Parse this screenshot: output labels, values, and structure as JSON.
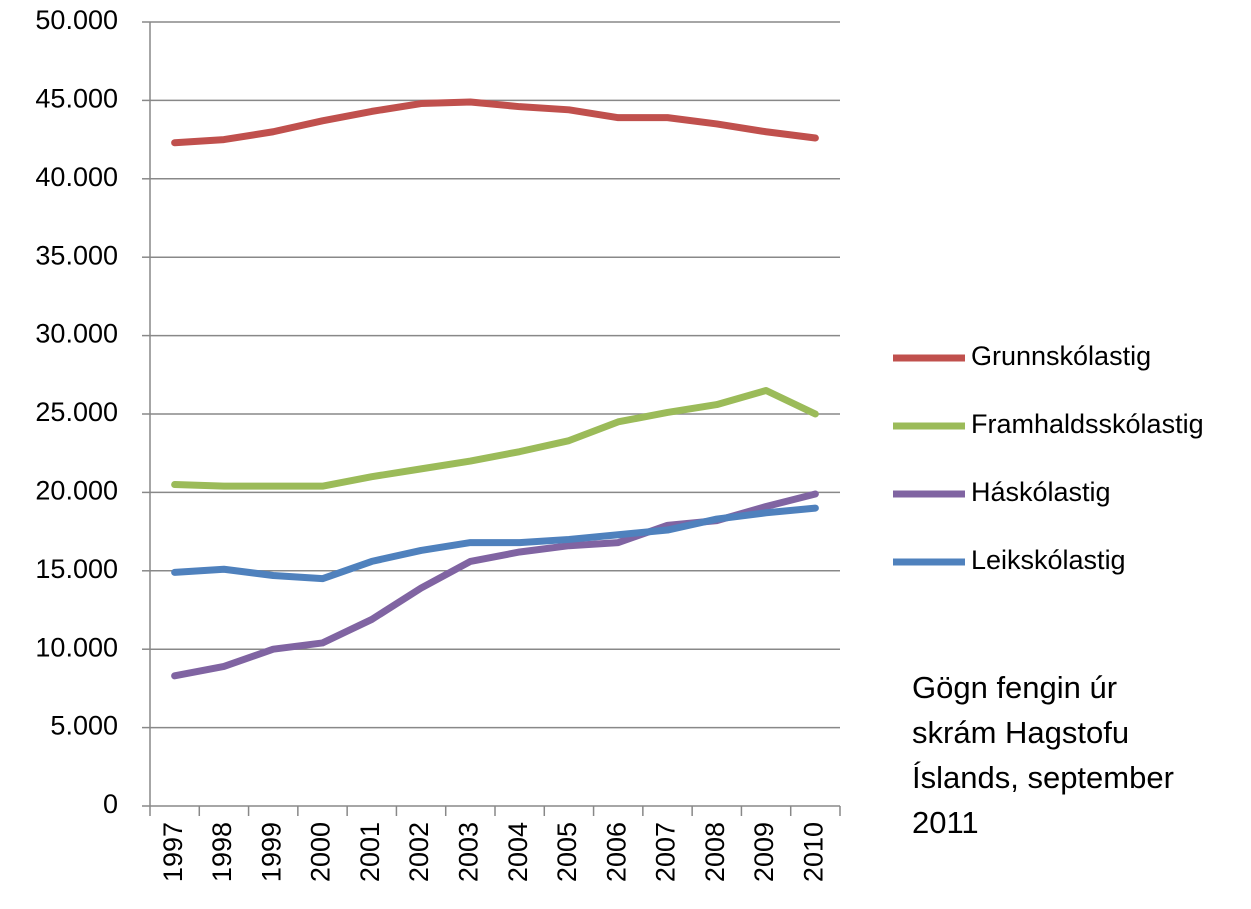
{
  "chart_data": {
    "type": "line",
    "categories": [
      "1997",
      "1998",
      "1999",
      "2000",
      "2001",
      "2002",
      "2003",
      "2004",
      "2005",
      "2006",
      "2007",
      "2008",
      "2009",
      "2010"
    ],
    "series": [
      {
        "name": "Grunnskólastig",
        "color": "#c0504d",
        "values": [
          42300,
          42500,
          43000,
          43700,
          44300,
          44800,
          44900,
          44600,
          44400,
          43900,
          43900,
          43500,
          43000,
          42600
        ]
      },
      {
        "name": "Framhaldsskólastig",
        "color": "#9bbb59",
        "values": [
          20500,
          20400,
          20400,
          20400,
          21000,
          21500,
          22000,
          22600,
          23300,
          24500,
          25100,
          25600,
          26500,
          25000
        ]
      },
      {
        "name": "Háskólastig",
        "color": "#8064a2",
        "values": [
          8300,
          8900,
          10000,
          10400,
          11900,
          13900,
          15600,
          16200,
          16600,
          16800,
          17900,
          18200,
          19100,
          19900
        ]
      },
      {
        "name": "Leikskólastig",
        "color": "#4f81bd",
        "values": [
          14900,
          15100,
          14700,
          14500,
          15600,
          16300,
          16800,
          16800,
          17000,
          17300,
          17600,
          18300,
          18700,
          19000
        ]
      }
    ],
    "ylim": [
      0,
      50000
    ],
    "yticks": [
      0,
      {
        "value": 5000,
        "label": "5.000"
      },
      {
        "value": 10000,
        "label": "10.000"
      },
      {
        "value": 15000,
        "label": "15.000"
      },
      {
        "value": 20000,
        "label": "20.000"
      },
      {
        "value": 25000,
        "label": "25.000"
      },
      {
        "value": 30000,
        "label": "30.000"
      },
      {
        "value": 35000,
        "label": "35.000"
      },
      {
        "value": 40000,
        "label": "40.000"
      },
      {
        "value": 45000,
        "label": "45.000"
      },
      {
        "value": 50000,
        "label": "50.000"
      }
    ],
    "grid": true,
    "legend": "right",
    "annotation": [
      "Gögn fengin úr",
      "skrám Hagstofu",
      "Íslands, september",
      "2011"
    ]
  }
}
